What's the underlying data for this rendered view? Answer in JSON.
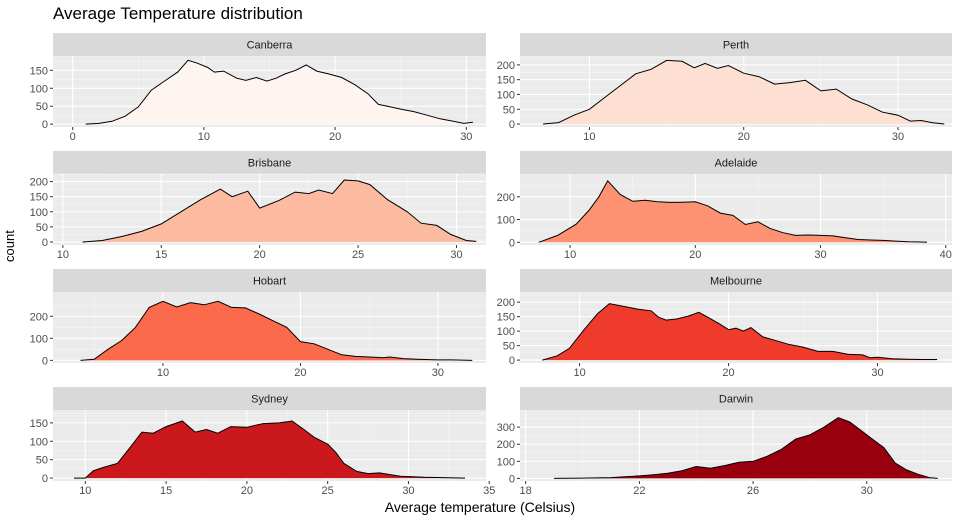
{
  "title": "Average Temperature distribution",
  "xlabel": "Average temperature (Celsius)",
  "ylabel": "count",
  "chart_data": {
    "type": "area",
    "title": "Average Temperature distribution",
    "xlabel": "Average temperature (Celsius)",
    "ylabel": "count",
    "grid": true,
    "layout": "facet grid, 4 rows x 2 columns",
    "panels": [
      {
        "city": "Canberra",
        "fill": "#fff5f0",
        "xlim": [
          -1.5,
          31.5
        ],
        "xticks": [
          0,
          10,
          20,
          30
        ],
        "ylim": [
          -8,
          190
        ],
        "yticks": [
          0,
          50,
          100,
          150
        ],
        "points": [
          [
            1,
            0
          ],
          [
            2,
            2
          ],
          [
            3,
            8
          ],
          [
            4,
            22
          ],
          [
            5,
            48
          ],
          [
            6,
            95
          ],
          [
            7,
            120
          ],
          [
            8,
            145
          ],
          [
            8.8,
            178
          ],
          [
            9.5,
            170
          ],
          [
            10.3,
            158
          ],
          [
            10.8,
            145
          ],
          [
            11.5,
            148
          ],
          [
            12.5,
            128
          ],
          [
            13.2,
            122
          ],
          [
            14,
            130
          ],
          [
            14.8,
            120
          ],
          [
            15.5,
            128
          ],
          [
            16.2,
            140
          ],
          [
            17,
            150
          ],
          [
            17.8,
            165
          ],
          [
            18.6,
            148
          ],
          [
            19.5,
            140
          ],
          [
            20.5,
            130
          ],
          [
            21.5,
            110
          ],
          [
            22.5,
            85
          ],
          [
            23.3,
            55
          ],
          [
            24,
            50
          ],
          [
            25,
            42
          ],
          [
            26,
            35
          ],
          [
            27,
            25
          ],
          [
            28,
            15
          ],
          [
            29,
            8
          ],
          [
            29.8,
            2
          ],
          [
            30.5,
            5
          ]
        ]
      },
      {
        "city": "Perth",
        "fill": "#fee0d2",
        "xlim": [
          5.5,
          33.5
        ],
        "xticks": [
          10,
          20,
          30
        ],
        "ylim": [
          -10,
          230
        ],
        "yticks": [
          0,
          50,
          100,
          150,
          200
        ],
        "points": [
          [
            7,
            0
          ],
          [
            8,
            5
          ],
          [
            9,
            30
          ],
          [
            10,
            50
          ],
          [
            11,
            90
          ],
          [
            12,
            130
          ],
          [
            13,
            170
          ],
          [
            14,
            185
          ],
          [
            15,
            215
          ],
          [
            16,
            212
          ],
          [
            16.8,
            190
          ],
          [
            17.5,
            205
          ],
          [
            18.3,
            188
          ],
          [
            19,
            198
          ],
          [
            20,
            172
          ],
          [
            21,
            160
          ],
          [
            22,
            135
          ],
          [
            23,
            140
          ],
          [
            24,
            148
          ],
          [
            25,
            112
          ],
          [
            26,
            118
          ],
          [
            27,
            85
          ],
          [
            28,
            65
          ],
          [
            29,
            40
          ],
          [
            30,
            30
          ],
          [
            30.8,
            10
          ],
          [
            31.5,
            12
          ],
          [
            32.2,
            5
          ],
          [
            33,
            0
          ]
        ]
      },
      {
        "city": "Brisbane",
        "fill": "#fcbba1",
        "xlim": [
          9.5,
          31.5
        ],
        "xticks": [
          10,
          15,
          20,
          25,
          30
        ],
        "ylim": [
          -10,
          225
        ],
        "yticks": [
          0,
          50,
          100,
          150,
          200
        ],
        "points": [
          [
            11,
            0
          ],
          [
            12,
            5
          ],
          [
            13,
            18
          ],
          [
            14,
            35
          ],
          [
            15,
            60
          ],
          [
            16,
            100
          ],
          [
            17,
            140
          ],
          [
            18,
            175
          ],
          [
            18.6,
            150
          ],
          [
            19.4,
            168
          ],
          [
            20,
            112
          ],
          [
            21,
            138
          ],
          [
            21.8,
            165
          ],
          [
            22.5,
            160
          ],
          [
            23,
            172
          ],
          [
            23.7,
            160
          ],
          [
            24.3,
            205
          ],
          [
            25,
            202
          ],
          [
            25.6,
            190
          ],
          [
            26.5,
            140
          ],
          [
            27.5,
            100
          ],
          [
            28.2,
            62
          ],
          [
            29,
            55
          ],
          [
            29.7,
            25
          ],
          [
            30.5,
            5
          ],
          [
            31,
            2
          ]
        ]
      },
      {
        "city": "Adelaide",
        "fill": "#fc9272",
        "xlim": [
          6,
          40.5
        ],
        "xticks": [
          10,
          20,
          30,
          40
        ],
        "ylim": [
          -12,
          300
        ],
        "yticks": [
          0,
          100,
          200
        ],
        "points": [
          [
            7.5,
            0
          ],
          [
            9,
            30
          ],
          [
            10.5,
            80
          ],
          [
            11.5,
            140
          ],
          [
            12.3,
            200
          ],
          [
            13,
            270
          ],
          [
            14,
            210
          ],
          [
            15,
            180
          ],
          [
            16,
            185
          ],
          [
            17,
            178
          ],
          [
            18,
            175
          ],
          [
            19,
            176
          ],
          [
            20,
            178
          ],
          [
            21,
            160
          ],
          [
            22,
            128
          ],
          [
            23,
            118
          ],
          [
            24,
            78
          ],
          [
            25,
            90
          ],
          [
            26,
            60
          ],
          [
            27,
            42
          ],
          [
            28,
            30
          ],
          [
            29,
            32
          ],
          [
            30,
            30
          ],
          [
            31,
            28
          ],
          [
            32,
            20
          ],
          [
            33,
            12
          ],
          [
            34,
            10
          ],
          [
            35,
            8
          ],
          [
            36,
            5
          ],
          [
            37,
            2
          ],
          [
            38,
            1
          ],
          [
            38.5,
            0
          ]
        ]
      },
      {
        "city": "Hobart",
        "fill": "#fb6a4a",
        "xlim": [
          2,
          33.5
        ],
        "xticks": [
          10,
          20,
          30
        ],
        "ylim": [
          -12,
          310
        ],
        "yticks": [
          0,
          100,
          200
        ],
        "points": [
          [
            4,
            0
          ],
          [
            5,
            5
          ],
          [
            6,
            50
          ],
          [
            7,
            90
          ],
          [
            8,
            150
          ],
          [
            9,
            240
          ],
          [
            10,
            268
          ],
          [
            11,
            242
          ],
          [
            12,
            262
          ],
          [
            13,
            252
          ],
          [
            14,
            268
          ],
          [
            15,
            240
          ],
          [
            16,
            238
          ],
          [
            17,
            210
          ],
          [
            18,
            180
          ],
          [
            19,
            150
          ],
          [
            20,
            85
          ],
          [
            21,
            75
          ],
          [
            22,
            50
          ],
          [
            23,
            25
          ],
          [
            24,
            18
          ],
          [
            25,
            15
          ],
          [
            26,
            12
          ],
          [
            26.5,
            15
          ],
          [
            27.5,
            8
          ],
          [
            28.5,
            5
          ],
          [
            30,
            2
          ],
          [
            31,
            2
          ],
          [
            32.5,
            0
          ]
        ]
      },
      {
        "city": "Melbourne",
        "fill": "#ef3b2c",
        "xlim": [
          6,
          35
        ],
        "xticks": [
          10,
          20,
          30
        ],
        "ylim": [
          -10,
          235
        ],
        "yticks": [
          0,
          50,
          100,
          150,
          200
        ],
        "points": [
          [
            7.5,
            0
          ],
          [
            8.5,
            15
          ],
          [
            9.3,
            40
          ],
          [
            10.3,
            105
          ],
          [
            11.2,
            160
          ],
          [
            12,
            195
          ],
          [
            13,
            185
          ],
          [
            14,
            175
          ],
          [
            14.8,
            170
          ],
          [
            15.3,
            148
          ],
          [
            15.8,
            138
          ],
          [
            16.5,
            142
          ],
          [
            17.3,
            152
          ],
          [
            18,
            165
          ],
          [
            18.6,
            148
          ],
          [
            19.4,
            125
          ],
          [
            20,
            105
          ],
          [
            20.5,
            110
          ],
          [
            21,
            100
          ],
          [
            21.5,
            112
          ],
          [
            22.3,
            80
          ],
          [
            23,
            70
          ],
          [
            24,
            55
          ],
          [
            25,
            45
          ],
          [
            26,
            30
          ],
          [
            27,
            30
          ],
          [
            28,
            20
          ],
          [
            29,
            18
          ],
          [
            29.5,
            8
          ],
          [
            30,
            10
          ],
          [
            31,
            5
          ],
          [
            32,
            3
          ],
          [
            33,
            2
          ],
          [
            34,
            2
          ]
        ]
      },
      {
        "city": "Sydney",
        "fill": "#cb181d",
        "xlim": [
          8,
          34.8
        ],
        "xticks": [
          10,
          15,
          20,
          25,
          30,
          35
        ],
        "ylim": [
          -8,
          185
        ],
        "yticks": [
          0,
          50,
          100,
          150
        ],
        "points": [
          [
            9.3,
            0
          ],
          [
            10,
            0
          ],
          [
            10.5,
            20
          ],
          [
            11.2,
            30
          ],
          [
            12,
            40
          ],
          [
            12.8,
            85
          ],
          [
            13.5,
            125
          ],
          [
            14.2,
            122
          ],
          [
            15,
            140
          ],
          [
            16,
            155
          ],
          [
            16.8,
            125
          ],
          [
            17.5,
            132
          ],
          [
            18.2,
            122
          ],
          [
            19,
            140
          ],
          [
            20,
            138
          ],
          [
            21,
            148
          ],
          [
            22,
            150
          ],
          [
            22.8,
            155
          ],
          [
            23.5,
            133
          ],
          [
            24.2,
            110
          ],
          [
            25,
            92
          ],
          [
            25.5,
            70
          ],
          [
            26,
            40
          ],
          [
            26.8,
            18
          ],
          [
            27.5,
            12
          ],
          [
            28.2,
            14
          ],
          [
            29.5,
            5
          ],
          [
            31,
            2
          ],
          [
            32.5,
            1
          ],
          [
            33.5,
            0
          ]
        ]
      },
      {
        "city": "Darwin",
        "fill": "#99000d",
        "xlim": [
          17.8,
          33
        ],
        "xticks": [
          18,
          22,
          26,
          30
        ],
        "ylim": [
          -15,
          400
        ],
        "yticks": [
          0,
          100,
          200,
          300
        ],
        "points": [
          [
            19,
            0
          ],
          [
            20,
            2
          ],
          [
            21,
            5
          ],
          [
            21.5,
            10
          ],
          [
            22,
            15
          ],
          [
            22.5,
            22
          ],
          [
            23,
            30
          ],
          [
            23.5,
            45
          ],
          [
            24,
            70
          ],
          [
            24.5,
            60
          ],
          [
            25,
            75
          ],
          [
            25.5,
            95
          ],
          [
            26,
            100
          ],
          [
            26.5,
            130
          ],
          [
            27,
            170
          ],
          [
            27.5,
            230
          ],
          [
            28,
            255
          ],
          [
            28.5,
            300
          ],
          [
            29,
            355
          ],
          [
            29.4,
            330
          ],
          [
            29.8,
            280
          ],
          [
            30.2,
            230
          ],
          [
            30.6,
            180
          ],
          [
            31,
            90
          ],
          [
            31.4,
            50
          ],
          [
            31.8,
            25
          ],
          [
            32.2,
            5
          ],
          [
            32.5,
            0
          ]
        ]
      }
    ]
  }
}
